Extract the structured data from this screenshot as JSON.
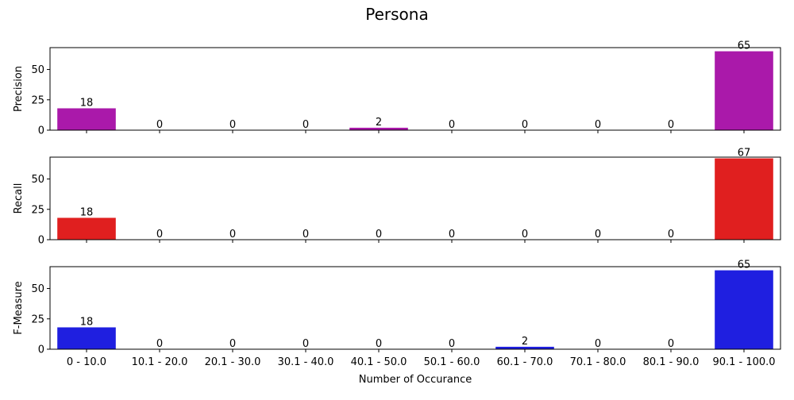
{
  "chart_data": {
    "type": "bar",
    "title": "Persona",
    "xlabel": "Number of Occurance",
    "categories": [
      "0 - 10.0",
      "10.1 - 20.0",
      "20.1 - 30.0",
      "30.1 - 40.0",
      "40.1 - 50.0",
      "50.1 - 60.0",
      "60.1 - 70.0",
      "70.1 - 80.0",
      "80.1 - 90.0",
      "90.1 - 100.0"
    ],
    "ylim": [
      0,
      68
    ],
    "yticks": [
      0,
      25,
      50
    ],
    "grid": false,
    "panels": [
      {
        "ylabel": "Precision",
        "color": "#aa19aa",
        "values": [
          18,
          0,
          0,
          0,
          2,
          0,
          0,
          0,
          0,
          65
        ]
      },
      {
        "ylabel": "Recall",
        "color": "#e01f1f",
        "values": [
          18,
          0,
          0,
          0,
          0,
          0,
          0,
          0,
          0,
          67
        ]
      },
      {
        "ylabel": "F-Measure",
        "color": "#1f1fe0",
        "values": [
          18,
          0,
          0,
          0,
          0,
          0,
          2,
          0,
          0,
          65
        ]
      }
    ]
  }
}
